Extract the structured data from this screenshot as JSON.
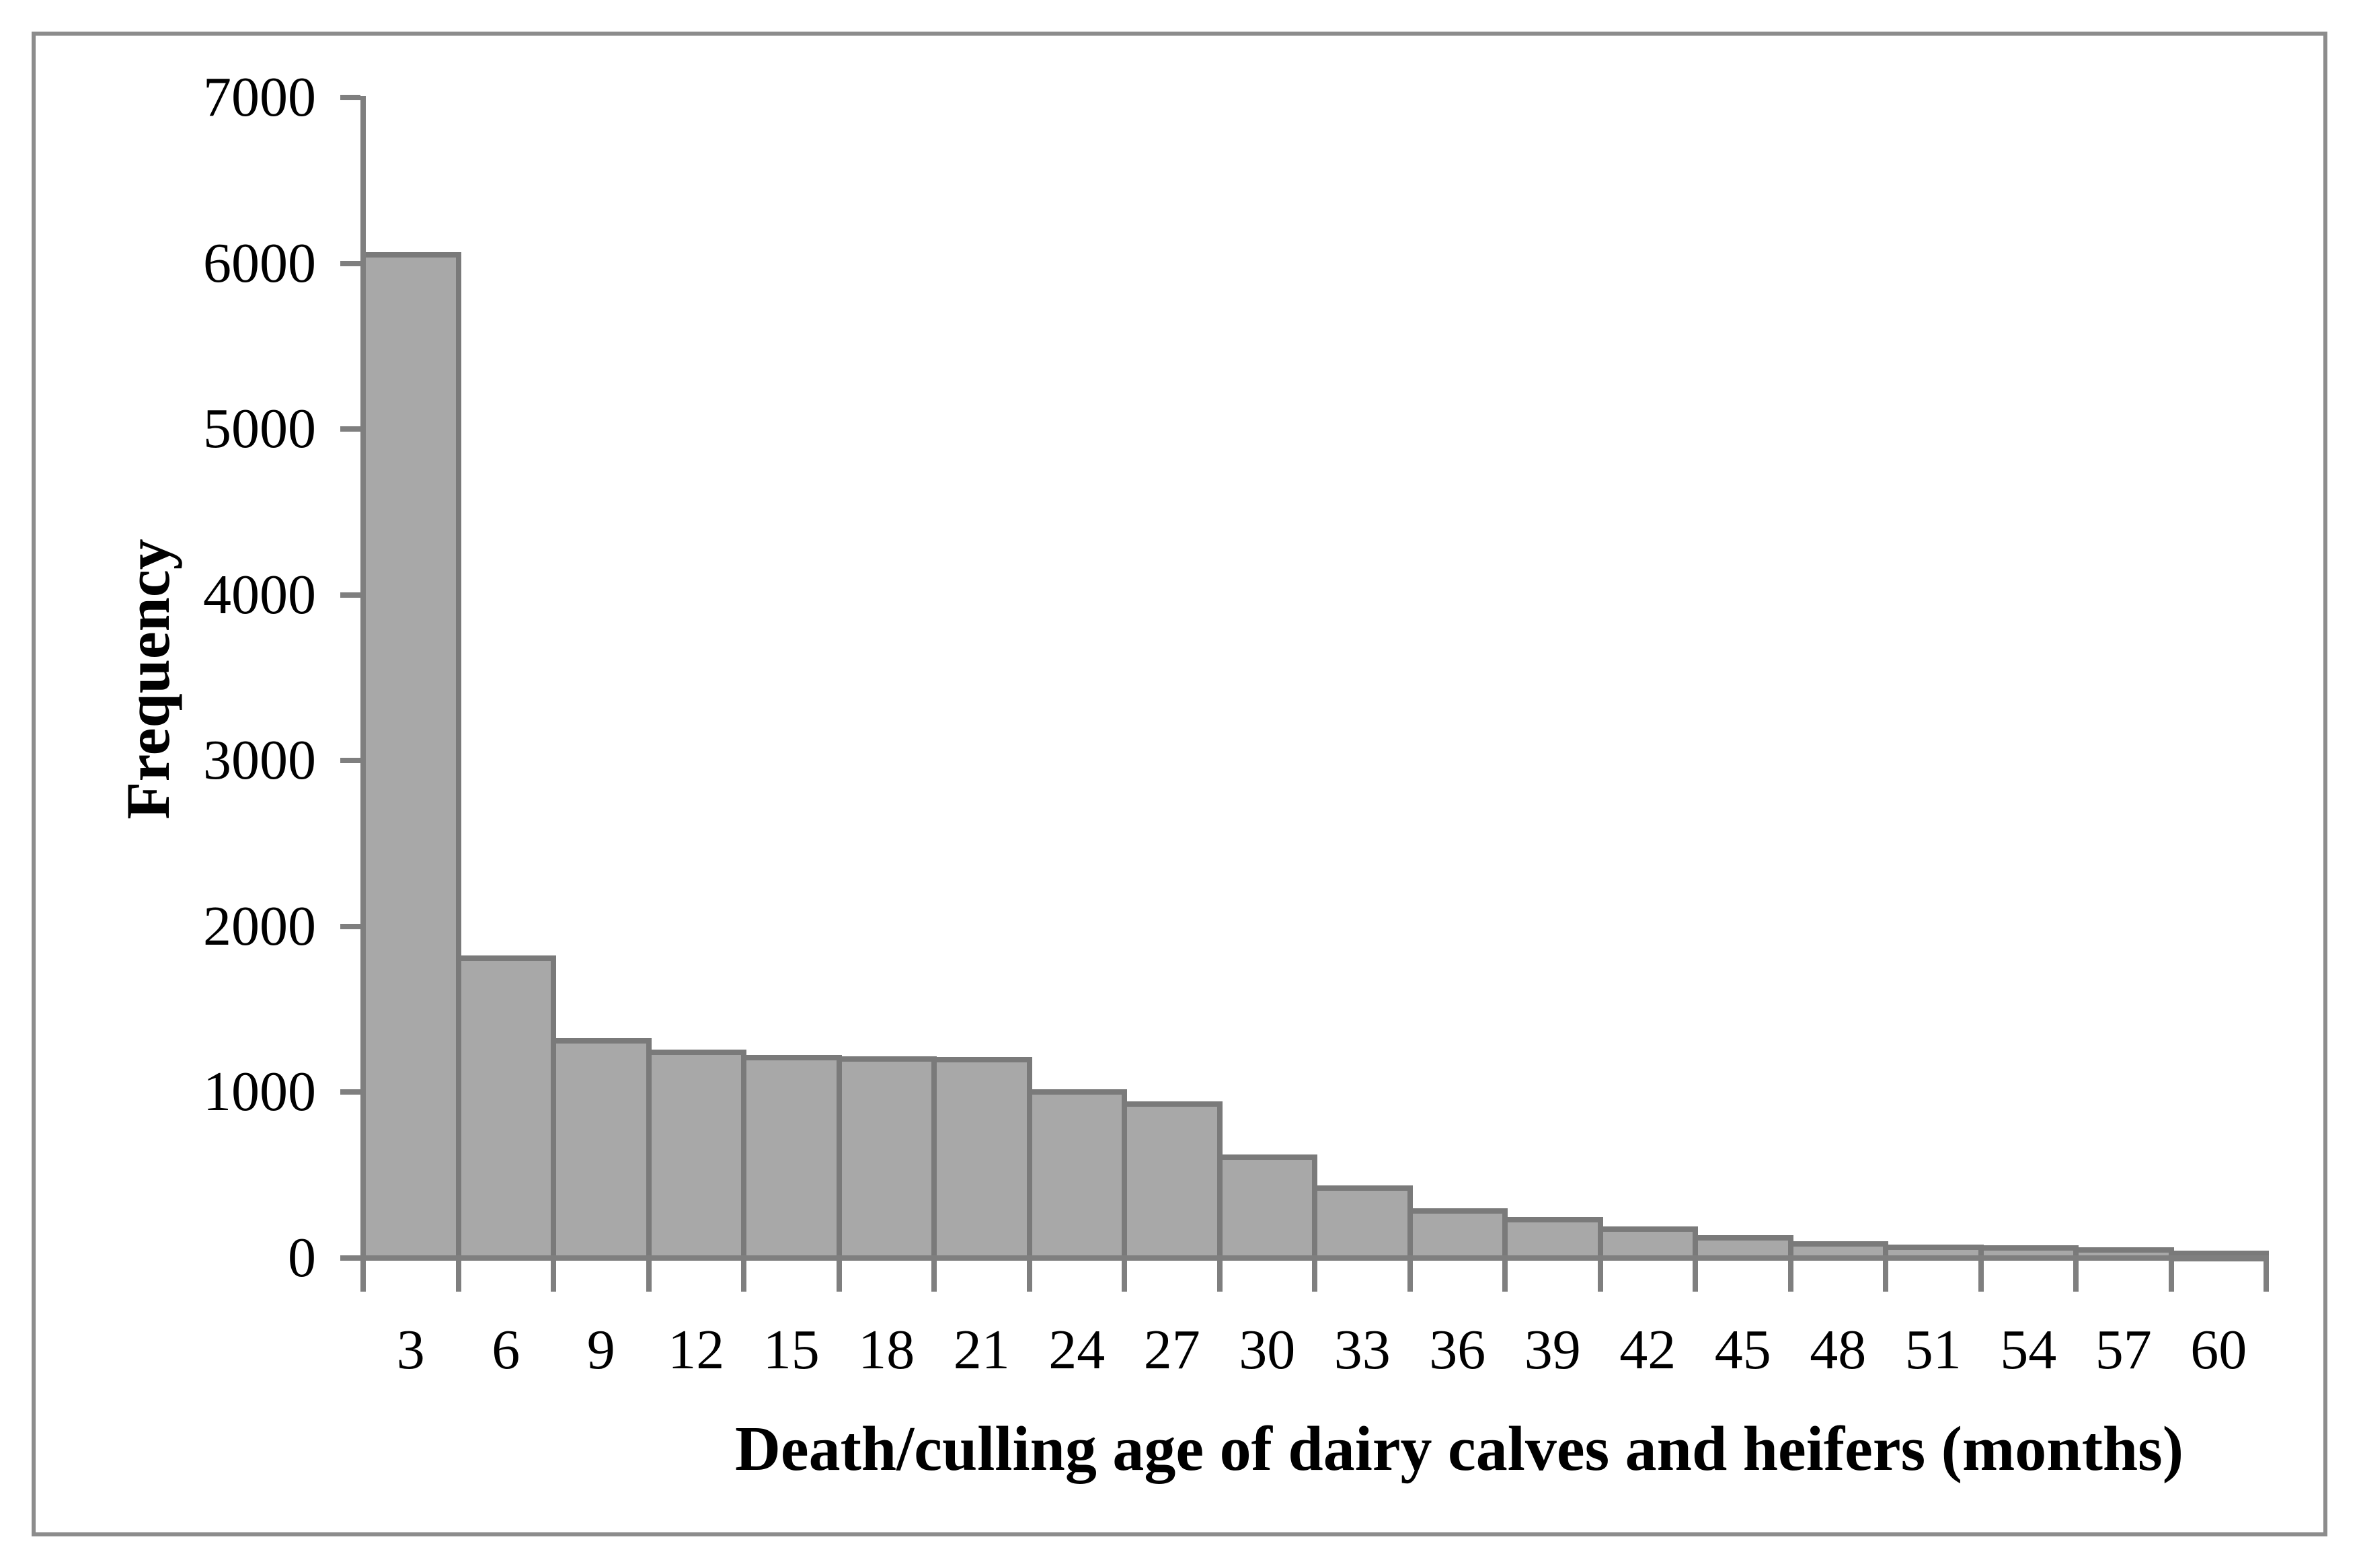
{
  "chart_data": {
    "type": "bar",
    "title": "",
    "xlabel": "Death/culling age of dairy calves and heifers (months)",
    "ylabel": "Frequency",
    "categories": [
      "3",
      "6",
      "9",
      "12",
      "15",
      "18",
      "21",
      "24",
      "27",
      "30",
      "33",
      "36",
      "39",
      "42",
      "45",
      "48",
      "51",
      "54",
      "57",
      "60"
    ],
    "values": [
      6050,
      1810,
      1310,
      1240,
      1210,
      1200,
      1195,
      1000,
      930,
      610,
      420,
      285,
      230,
      175,
      120,
      85,
      65,
      60,
      50,
      30
    ],
    "ylim": [
      0,
      7000
    ],
    "yticks": [
      "0",
      "1000",
      "2000",
      "3000",
      "4000",
      "5000",
      "6000",
      "7000"
    ],
    "ytick_interval": 1000,
    "grid": false,
    "legend": false,
    "bar_gap": 0,
    "colors": {
      "bar_fill": "#a8a8a8",
      "bar_border": "#7a7a7a",
      "axis": "#7f7f7f",
      "frame": "#8c8c8c",
      "text": "#000000",
      "background": "#ffffff"
    }
  }
}
